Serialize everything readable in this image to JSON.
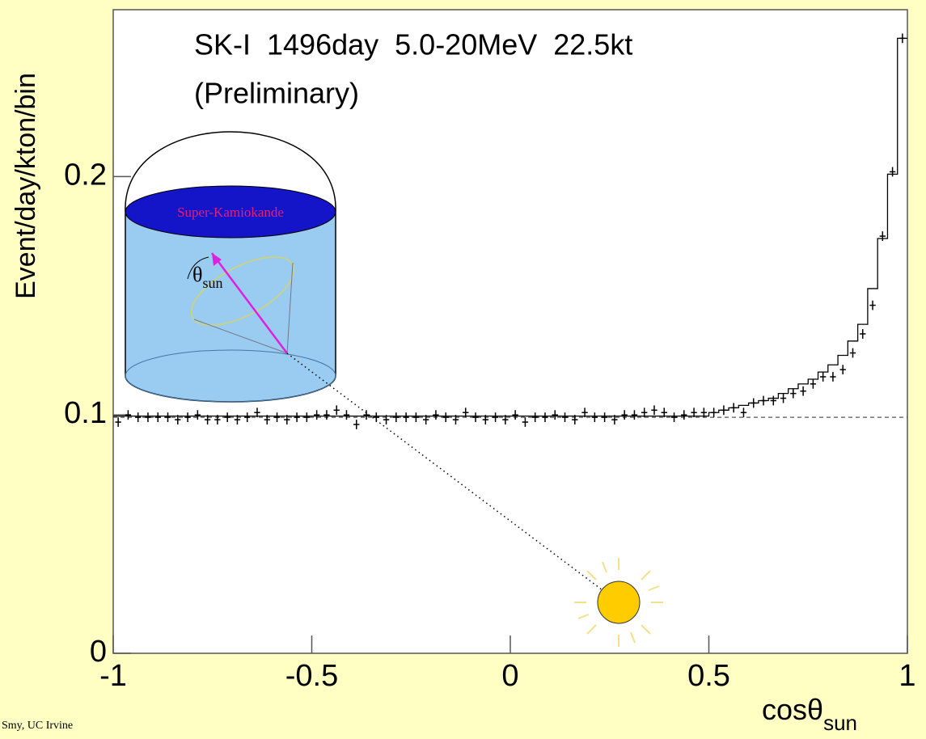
{
  "chart_data": {
    "type": "scatter",
    "title": "SK-I  1496day  5.0-20MeV  22.5kt",
    "subtitle": "(Preliminary)",
    "y_label": "Event/day/kton/bin",
    "x_label": "cosθ",
    "x_label_sub": "sun",
    "credit": "Smy, UC Irvine",
    "annotations": {
      "detector": "Super-Kamiokande",
      "angle": "θ",
      "angle_sub": "sun"
    },
    "xlim": [
      -1,
      1
    ],
    "xticks": [
      -1,
      -0.5,
      0,
      0.5,
      1
    ],
    "ylim": [
      0,
      0.27
    ],
    "yticks": [
      0,
      0.1,
      0.2
    ],
    "bins": [
      -1,
      -0.975,
      -0.95,
      -0.925,
      -0.9,
      -0.875,
      -0.85,
      -0.825,
      -0.8,
      -0.775,
      -0.75,
      -0.725,
      -0.7,
      -0.675,
      -0.65,
      -0.625,
      -0.6,
      -0.575,
      -0.55,
      -0.525,
      -0.5,
      -0.475,
      -0.45,
      -0.425,
      -0.4,
      -0.375,
      -0.35,
      -0.325,
      -0.3,
      -0.275,
      -0.25,
      -0.225,
      -0.2,
      -0.175,
      -0.15,
      -0.125,
      -0.1,
      -0.075,
      -0.05,
      -0.025,
      0,
      0.025,
      0.05,
      0.075,
      0.1,
      0.125,
      0.15,
      0.175,
      0.2,
      0.225,
      0.25,
      0.275,
      0.3,
      0.325,
      0.35,
      0.375,
      0.4,
      0.425,
      0.45,
      0.475,
      0.5,
      0.525,
      0.55,
      0.575,
      0.6,
      0.625,
      0.65,
      0.675,
      0.7,
      0.725,
      0.75,
      0.775,
      0.8,
      0.825,
      0.85,
      0.875,
      0.9,
      0.925,
      0.95,
      0.975,
      1
    ],
    "data_values": [
      0.097,
      0.1,
      0.099,
      0.099,
      0.099,
      0.099,
      0.098,
      0.099,
      0.1,
      0.098,
      0.098,
      0.099,
      0.098,
      0.099,
      0.101,
      0.098,
      0.099,
      0.098,
      0.099,
      0.099,
      0.1,
      0.1,
      0.102,
      0.1,
      0.096,
      0.1,
      0.099,
      0.098,
      0.099,
      0.099,
      0.099,
      0.098,
      0.1,
      0.099,
      0.098,
      0.101,
      0.099,
      0.098,
      0.099,
      0.098,
      0.1,
      0.097,
      0.099,
      0.099,
      0.1,
      0.099,
      0.098,
      0.101,
      0.099,
      0.099,
      0.098,
      0.1,
      0.1,
      0.101,
      0.102,
      0.101,
      0.099,
      0.1,
      0.101,
      0.101,
      0.101,
      0.102,
      0.103,
      0.101,
      0.105,
      0.106,
      0.106,
      0.107,
      0.109,
      0.11,
      0.113,
      0.116,
      0.116,
      0.119,
      0.126,
      0.134,
      0.146,
      0.175,
      0.202,
      0.258
    ],
    "error": 0.002,
    "mc_values": [
      0.0995,
      0.0995,
      0.0995,
      0.0995,
      0.0995,
      0.0995,
      0.0995,
      0.0995,
      0.0995,
      0.0995,
      0.0995,
      0.0995,
      0.0995,
      0.0995,
      0.0995,
      0.0995,
      0.0995,
      0.0995,
      0.0995,
      0.0995,
      0.0995,
      0.0995,
      0.0995,
      0.0995,
      0.0995,
      0.0995,
      0.0995,
      0.0995,
      0.0995,
      0.0995,
      0.0995,
      0.0995,
      0.0995,
      0.0995,
      0.0995,
      0.0995,
      0.0995,
      0.0995,
      0.0995,
      0.0995,
      0.0995,
      0.0995,
      0.0995,
      0.0995,
      0.0995,
      0.0995,
      0.0995,
      0.0995,
      0.0995,
      0.0995,
      0.0995,
      0.0995,
      0.0995,
      0.0995,
      0.0995,
      0.0995,
      0.0995,
      0.0995,
      0.0995,
      0.0995,
      0.101,
      0.102,
      0.103,
      0.104,
      0.105,
      0.106,
      0.107,
      0.109,
      0.111,
      0.113,
      0.115,
      0.118,
      0.121,
      0.125,
      0.131,
      0.138,
      0.153,
      0.174,
      0.201,
      0.258
    ],
    "background": 0.099
  }
}
